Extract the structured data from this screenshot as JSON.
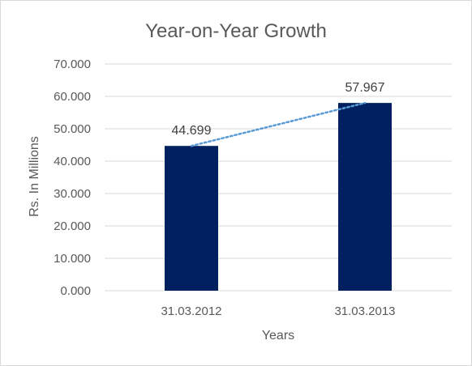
{
  "chart_data": {
    "type": "bar",
    "title": "Year-on-Year Growth",
    "xlabel": "Years",
    "ylabel": "Rs. In Millions",
    "categories": [
      "31.03.2012",
      "31.03.2013"
    ],
    "series": [
      {
        "values": [
          44.699,
          57.967
        ]
      }
    ],
    "data_labels": [
      "44.699",
      "57.967"
    ],
    "ylim": [
      0,
      70
    ],
    "y_ticks": [
      0,
      10,
      20,
      30,
      40,
      50,
      60,
      70
    ],
    "y_tick_labels": [
      "0.000",
      "10.000",
      "20.000",
      "30.000",
      "40.000",
      "50.000",
      "60.000",
      "70.000"
    ],
    "trendline": {
      "type": "linear",
      "style": "dotted"
    },
    "grid": true,
    "legend": "none",
    "colors": {
      "bar": "#002060",
      "trendline": "#5b9bd5",
      "grid": "#d9d9d9",
      "text": "#595959"
    }
  }
}
